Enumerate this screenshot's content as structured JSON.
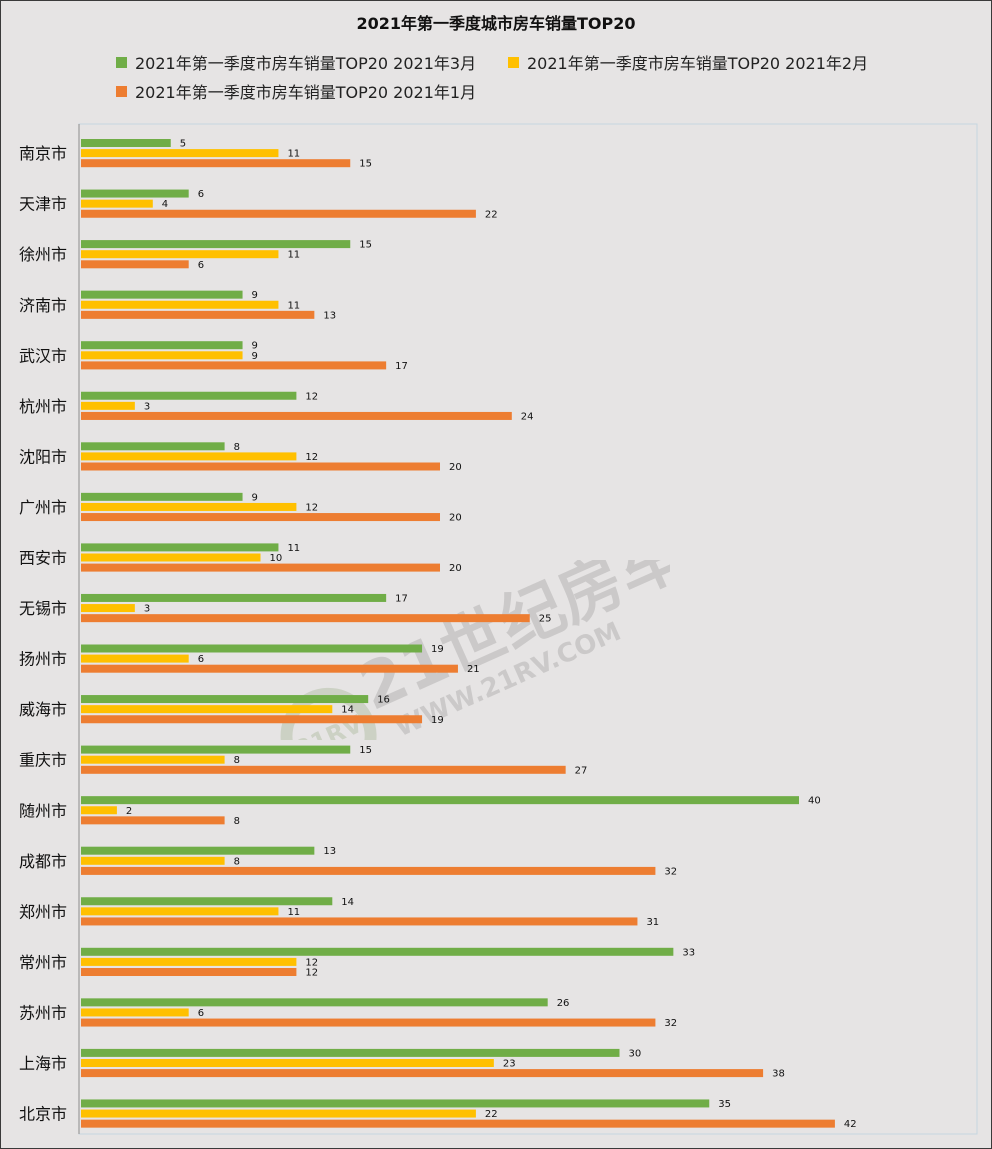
{
  "colors": {
    "march": "#70ad47",
    "february": "#ffc000",
    "january": "#ed7d31",
    "plot_border": "#c5d6e0",
    "axis": "#8c8c8c"
  },
  "watermark": {
    "brand": "21世纪房车",
    "url": "WWW.21RV.COM",
    "badge": "21RV"
  },
  "chart_data": {
    "type": "bar",
    "orientation": "horizontal",
    "title": "2021年第一季度城市房车销量TOP20",
    "legend_position": "top",
    "grid": false,
    "xlim": [
      0,
      50
    ],
    "categories": [
      "南京市",
      "天津市",
      "徐州市",
      "济南市",
      "武汉市",
      "杭州市",
      "沈阳市",
      "广州市",
      "西安市",
      "无锡市",
      "扬州市",
      "威海市",
      "重庆市",
      "随州市",
      "成都市",
      "郑州市",
      "常州市",
      "苏州市",
      "上海市",
      "北京市"
    ],
    "series": [
      {
        "name": "2021年第一季度市房车销量TOP20 2021年3月",
        "color": "#70ad47",
        "values": [
          5,
          6,
          15,
          9,
          9,
          12,
          8,
          9,
          11,
          17,
          19,
          16,
          15,
          40,
          13,
          14,
          33,
          26,
          30,
          35
        ]
      },
      {
        "name": "2021年第一季度市房车销量TOP20 2021年2月",
        "color": "#ffc000",
        "values": [
          11,
          4,
          11,
          11,
          9,
          3,
          12,
          12,
          10,
          3,
          6,
          14,
          8,
          2,
          8,
          11,
          12,
          6,
          23,
          22
        ]
      },
      {
        "name": "2021年第一季度市房车销量TOP20 2021年1月",
        "color": "#ed7d31",
        "values": [
          15,
          22,
          6,
          13,
          17,
          24,
          20,
          20,
          20,
          25,
          21,
          19,
          27,
          8,
          32,
          31,
          12,
          32,
          38,
          42
        ]
      }
    ]
  }
}
